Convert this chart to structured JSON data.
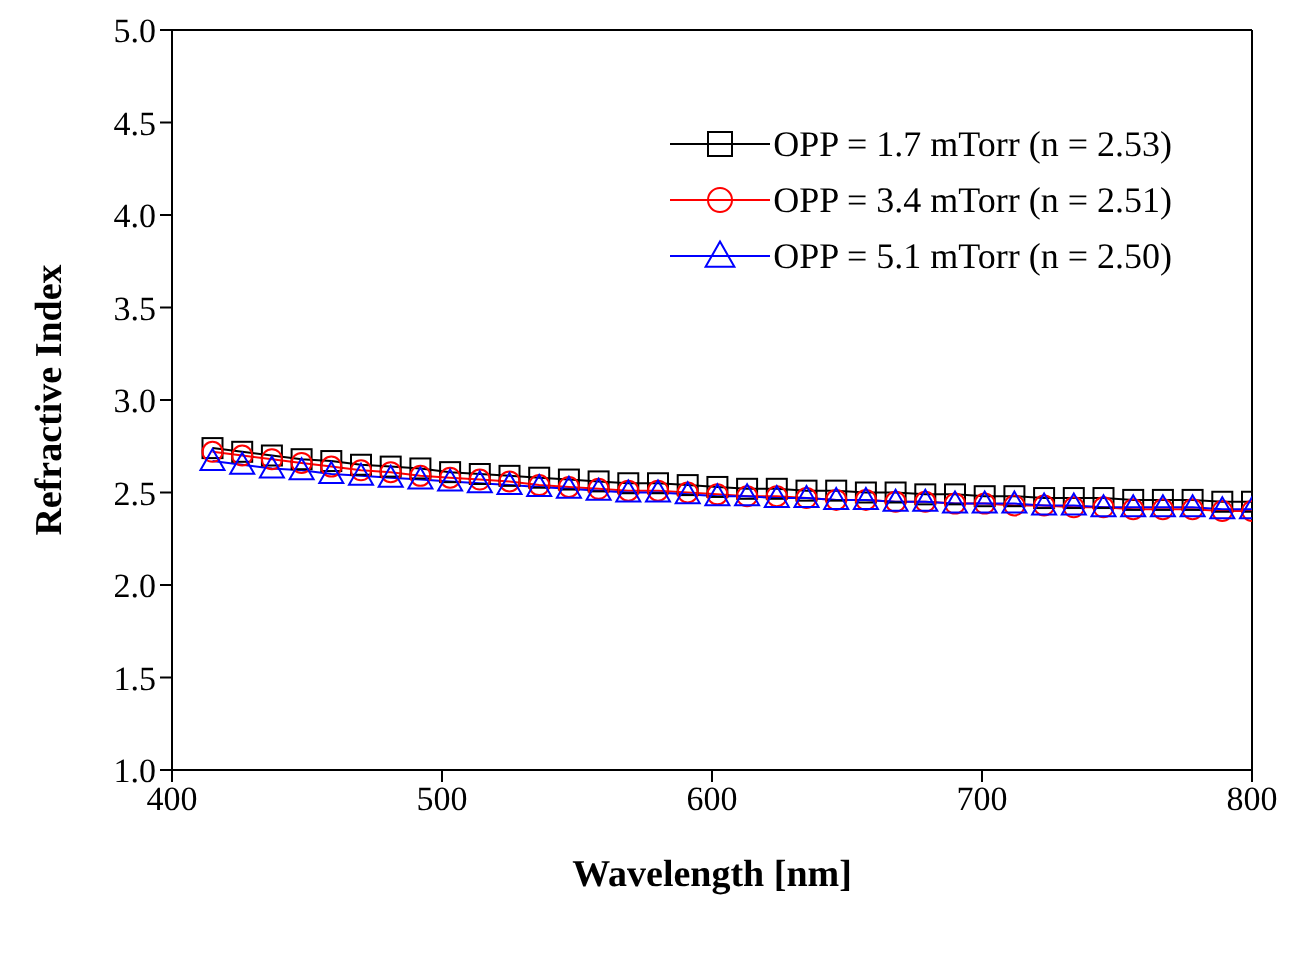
{
  "chart_data": {
    "type": "line",
    "xlabel": "Wavelength [nm]",
    "ylabel": "Refractive Index",
    "x": [
      415,
      426,
      437,
      448,
      459,
      470,
      481,
      492,
      503,
      514,
      525,
      536,
      547,
      558,
      569,
      580,
      591,
      602,
      613,
      624,
      635,
      646,
      657,
      668,
      679,
      690,
      701,
      712,
      723,
      734,
      745,
      756,
      767,
      778,
      789,
      800
    ],
    "series": [
      {
        "name": "OPP = 1.7 mTorr (n = 2.53)",
        "color": "#000000",
        "marker": "square",
        "values": [
          2.74,
          2.72,
          2.7,
          2.68,
          2.67,
          2.65,
          2.64,
          2.63,
          2.61,
          2.6,
          2.59,
          2.58,
          2.57,
          2.56,
          2.55,
          2.55,
          2.54,
          2.53,
          2.52,
          2.52,
          2.51,
          2.51,
          2.5,
          2.5,
          2.49,
          2.49,
          2.48,
          2.48,
          2.47,
          2.47,
          2.47,
          2.46,
          2.46,
          2.46,
          2.45,
          2.45
        ]
      },
      {
        "name": "OPP = 3.4 mTorr (n = 2.51)",
        "color": "#ff0000",
        "marker": "circle",
        "values": [
          2.72,
          2.7,
          2.68,
          2.66,
          2.64,
          2.62,
          2.61,
          2.59,
          2.58,
          2.57,
          2.56,
          2.54,
          2.53,
          2.52,
          2.51,
          2.51,
          2.5,
          2.49,
          2.48,
          2.48,
          2.47,
          2.46,
          2.46,
          2.45,
          2.45,
          2.44,
          2.44,
          2.43,
          2.43,
          2.42,
          2.42,
          2.41,
          2.41,
          2.41,
          2.4,
          2.4
        ]
      },
      {
        "name": "OPP = 5.1 mTorr (n = 2.50)",
        "color": "#0000ff",
        "marker": "triangle",
        "values": [
          2.67,
          2.65,
          2.63,
          2.62,
          2.6,
          2.59,
          2.58,
          2.57,
          2.56,
          2.55,
          2.54,
          2.53,
          2.52,
          2.51,
          2.5,
          2.5,
          2.49,
          2.48,
          2.48,
          2.47,
          2.47,
          2.46,
          2.46,
          2.45,
          2.45,
          2.44,
          2.44,
          2.44,
          2.43,
          2.43,
          2.42,
          2.42,
          2.42,
          2.42,
          2.41,
          2.41
        ]
      }
    ],
    "xlim": [
      400,
      800
    ],
    "xticks": [
      400,
      500,
      600,
      700,
      800
    ],
    "ylim": [
      1,
      5
    ],
    "yticks": [
      {
        "value": 1,
        "label": "1.0"
      },
      {
        "value": 1.5,
        "label": "1.5"
      },
      {
        "value": 2,
        "label": "2.0"
      },
      {
        "value": 2.5,
        "label": "2.5"
      },
      {
        "value": 3,
        "label": "3.0"
      },
      {
        "value": 3.5,
        "label": "3.5"
      },
      {
        "value": 4,
        "label": "4.0"
      },
      {
        "value": 4.5,
        "label": "4.5"
      },
      {
        "value": 5,
        "label": "5.0"
      }
    ],
    "grid": false,
    "legend": "top right",
    "line_style": "solid"
  }
}
